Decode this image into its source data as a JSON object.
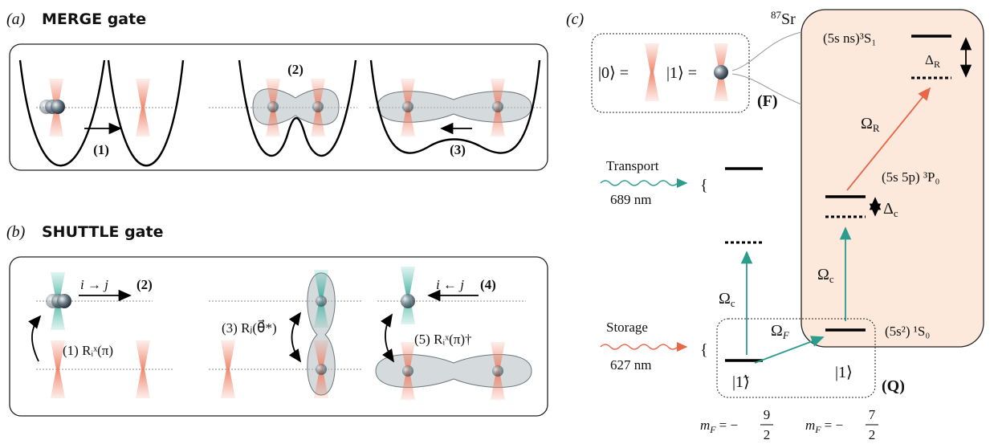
{
  "panel_a": {
    "label": "(a)",
    "title": "MERGE gate",
    "steps": [
      "(1)",
      "(2)",
      "(3)"
    ]
  },
  "panel_b": {
    "label": "(b)",
    "title": "SHUTTLE gate",
    "move_right": "i → j",
    "move_right_step": "(2)",
    "rotation_i": "(1) Rᵢˣ(π)",
    "rotation_j": "(3) Rⱼ(θ⃗*)",
    "move_left": "i ← j",
    "move_left_step": "(4)",
    "rotation_back": "(5) Rᵢˣ(π)†"
  },
  "panel_c": {
    "label": "(c)",
    "isotope": {
      "mass": "87",
      "element": "Sr"
    },
    "qubit_f": {
      "ket0": "|0⟩ =",
      "ket1": "|1⟩ =",
      "tag": "(F)"
    },
    "rydberg_level": "(5s ns)³S₁",
    "delta_r": {
      "symbol": "Δ",
      "sub": "R"
    },
    "omega_r": {
      "symbol": "Ω",
      "sub": "R"
    },
    "p_level": "(5s 5p) ³P₀",
    "delta_c": {
      "symbol": "Δ",
      "sub": "c"
    },
    "transport": {
      "label": "Transport",
      "wavelength": "689 nm"
    },
    "omega_c_left": {
      "symbol": "Ω",
      "sub": "c"
    },
    "omega_c_right": {
      "symbol": "Ω",
      "sub": "c"
    },
    "storage": {
      "label": "Storage",
      "wavelength": "627 nm"
    },
    "omega_f": {
      "symbol": "Ω",
      "sub": "F"
    },
    "s_level": "(5s²) ¹S₀",
    "qubit_q": {
      "ket_tilde": "|1̃⟩",
      "ket1": "|1⟩",
      "tag": "(Q)"
    },
    "mf_left": {
      "symbol": "m",
      "sub": "F",
      "relation": "= −",
      "numerator": "9",
      "denominator": "2"
    },
    "mf_right": {
      "symbol": "m",
      "sub": "F",
      "relation": "= −",
      "numerator": "7",
      "denominator": "2"
    }
  }
}
